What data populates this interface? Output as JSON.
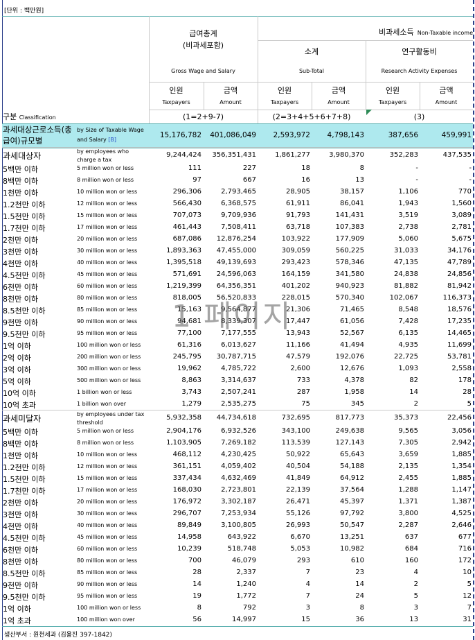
{
  "unit_note": "[단위 : 백만원]",
  "header": {
    "gross_ko1": "급여총계",
    "gross_ko2": "(비과세포함)",
    "gross_en": "Gross Wage and Salary",
    "nontax_ko": "비과세소득",
    "nontax_en": "Non-Taxable income",
    "subtotal_ko": "소계",
    "subtotal_en": "Sub-Total",
    "research_ko": "연구활동비",
    "research_en": "Research Activity Expenses",
    "persons_ko": "인원",
    "persons_en": "Taxpayers",
    "amount_ko": "금액",
    "amount_en": "Amount",
    "classification_ko": "구분",
    "classification_en": "Classification",
    "formula1": "(1=2+9-7)",
    "formula2": "(2=3+4+5+6+7+8)",
    "formula3": "(3)"
  },
  "rows": [
    {
      "type": "total",
      "ko": "과세대상근로소득(총급여)규모별",
      "en": "by Size of Taxable Wage and Salary",
      "en_tag": "[B]",
      "v": [
        "15,176,782",
        "401,086,049",
        "2,593,972",
        "4,798,143",
        "387,656",
        "459,991"
      ]
    },
    {
      "type": "sub",
      "ko": "과세대상자",
      "en": "by  employees who charge a tax",
      "v": [
        "9,244,424",
        "356,351,431",
        "1,861,277",
        "3,980,370",
        "352,283",
        "437,535"
      ]
    },
    {
      "ko": "5백만 이하",
      "en": "5  million won or less",
      "v": [
        "111",
        "227",
        "18",
        "8",
        "-",
        "-"
      ]
    },
    {
      "ko": "8백만 이하",
      "en": "8  million won or less",
      "v": [
        "97",
        "667",
        "16",
        "13",
        "-",
        "-"
      ]
    },
    {
      "ko": "1천만 이하",
      "en": "10 million won or less",
      "v": [
        "296,306",
        "2,793,465",
        "28,905",
        "38,157",
        "1,106",
        "770"
      ]
    },
    {
      "ko": "1.2천만 이하",
      "en": "12 million won or less",
      "v": [
        "566,430",
        "6,368,575",
        "61,911",
        "86,041",
        "1,943",
        "1,560"
      ]
    },
    {
      "ko": "1.5천만 이하",
      "en": "15 million won or less",
      "v": [
        "707,073",
        "9,709,936",
        "91,793",
        "141,431",
        "3,519",
        "3,089"
      ]
    },
    {
      "ko": "1.7천만 이하",
      "en": "17 million won or less",
      "v": [
        "461,443",
        "7,508,411",
        "63,718",
        "107,383",
        "2,738",
        "2,781"
      ]
    },
    {
      "ko": "2천만 이하",
      "en": "20 million won or less",
      "v": [
        "687,086",
        "12,876,254",
        "103,922",
        "177,909",
        "5,060",
        "5,675"
      ]
    },
    {
      "ko": "3천만 이하",
      "en": "30 million won or less",
      "v": [
        "1,893,363",
        "47,455,000",
        "309,059",
        "560,225",
        "31,033",
        "34,176"
      ]
    },
    {
      "ko": "4천만 이하",
      "en": "40 million won or less",
      "v": [
        "1,395,518",
        "49,139,693",
        "293,423",
        "578,346",
        "47,135",
        "47,789"
      ]
    },
    {
      "ko": "4.5천만 이하",
      "en": "45 million won or less",
      "v": [
        "571,691",
        "24,596,063",
        "164,159",
        "341,580",
        "24,838",
        "24,856"
      ]
    },
    {
      "ko": "6천만 이하",
      "en": "60 million won or less",
      "v": [
        "1,219,399",
        "64,356,351",
        "401,202",
        "940,923",
        "81,882",
        "81,942"
      ]
    },
    {
      "ko": "8천만 이하",
      "en": "80 million won or less",
      "v": [
        "818,005",
        "56,520,833",
        "228,015",
        "570,340",
        "102,067",
        "116,373"
      ]
    },
    {
      "ko": "8.5천만 이하",
      "en": "85 million won or less",
      "v": [
        "15,163",
        "9,564,877",
        "21,306",
        "71,465",
        "8,548",
        "18,576"
      ]
    },
    {
      "ko": "9천만 이하",
      "en": "90 million won or less",
      "v": [
        "94,681",
        "8,339,307",
        "17,447",
        "61,056",
        "7,428",
        "17,235"
      ]
    },
    {
      "ko": "9.5천만 이하",
      "en": "95 million won or less",
      "v": [
        "77,100",
        "7,177,555",
        "13,943",
        "52,567",
        "6,135",
        "14,465"
      ]
    },
    {
      "ko": "1억 이하",
      "en": "100 million won or less",
      "v": [
        "61,316",
        "6,013,627",
        "11,166",
        "41,494",
        "4,935",
        "11,699"
      ]
    },
    {
      "ko": "2억 이하",
      "en": "200 million won or less",
      "v": [
        "245,795",
        "30,787,715",
        "47,579",
        "192,076",
        "22,725",
        "53,781"
      ]
    },
    {
      "ko": "3억 이하",
      "en": "300 million won or less",
      "v": [
        "19,962",
        "4,785,722",
        "2,600",
        "12,676",
        "1,093",
        "2,558"
      ]
    },
    {
      "ko": "5억 이하",
      "en": "500 million won or less",
      "v": [
        "8,863",
        "3,314,637",
        "733",
        "4,378",
        "82",
        "178"
      ]
    },
    {
      "ko": "10억 이하",
      "en": "1 billion won or less",
      "v": [
        "3,743",
        "2,507,241",
        "287",
        "1,958",
        "14",
        "28"
      ]
    },
    {
      "ko": "10억 초과",
      "en": "1 billion won over",
      "v": [
        "1,279",
        "2,535,275",
        "75",
        "345",
        "2",
        "5"
      ]
    },
    {
      "type": "sub",
      "ko": "과세미달자",
      "en": "by employees under tax threshold",
      "v": [
        "5,932,358",
        "44,734,618",
        "732,695",
        "817,773",
        "35,373",
        "22,456"
      ]
    },
    {
      "ko": "5백만 이하",
      "en": "5  million won or less",
      "v": [
        "2,904,176",
        "6,932,526",
        "343,100",
        "249,638",
        "9,565",
        "3,056"
      ]
    },
    {
      "ko": "8백만 이하",
      "en": "8  million won or less",
      "v": [
        "1,103,905",
        "7,269,182",
        "113,539",
        "127,143",
        "7,305",
        "2,942"
      ]
    },
    {
      "ko": "1천만 이하",
      "en": "10 million won or less",
      "v": [
        "468,112",
        "4,230,425",
        "50,922",
        "65,643",
        "3,659",
        "1,885"
      ]
    },
    {
      "ko": "1.2천만 이하",
      "en": "12 million won or less",
      "v": [
        "361,151",
        "4,059,402",
        "40,504",
        "54,188",
        "2,135",
        "1,354"
      ]
    },
    {
      "ko": "1.5천만 이하",
      "en": "15 million won or less",
      "v": [
        "337,434",
        "4,632,469",
        "41,849",
        "64,912",
        "2,455",
        "1,885"
      ]
    },
    {
      "ko": "1.7천만 이하",
      "en": "17 million won or less",
      "v": [
        "168,030",
        "2,723,801",
        "22,139",
        "37,564",
        "1,288",
        "1,147"
      ]
    },
    {
      "ko": "2천만 이하",
      "en": "20 million won or less",
      "v": [
        "176,972",
        "3,302,187",
        "26,471",
        "45,397",
        "1,371",
        "1,387"
      ]
    },
    {
      "ko": "3천만 이하",
      "en": "30 million won or less",
      "v": [
        "296,707",
        "7,253,934",
        "55,126",
        "97,792",
        "3,800",
        "4,525"
      ]
    },
    {
      "ko": "4천만 이하",
      "en": "40 million won or less",
      "v": [
        "89,849",
        "3,100,805",
        "26,993",
        "50,547",
        "2,287",
        "2,646"
      ]
    },
    {
      "ko": "4.5천만 이하",
      "en": "45 million won or less",
      "v": [
        "14,958",
        "643,922",
        "6,670",
        "13,251",
        "637",
        "677"
      ]
    },
    {
      "ko": "6천만 이하",
      "en": "60 million won or less",
      "v": [
        "10,239",
        "518,748",
        "5,053",
        "10,982",
        "684",
        "716"
      ]
    },
    {
      "ko": "8천만 이하",
      "en": "80 million won or less",
      "v": [
        "700",
        "46,079",
        "293",
        "610",
        "160",
        "172"
      ]
    },
    {
      "ko": "8.5천만 이하",
      "en": "85 million won or less",
      "v": [
        "28",
        "2,337",
        "7",
        "23",
        "4",
        "10"
      ]
    },
    {
      "ko": "9천만 이하",
      "en": "90 million won or less",
      "v": [
        "14",
        "1,240",
        "4",
        "14",
        "2",
        "5"
      ]
    },
    {
      "ko": "9.5천만 이하",
      "en": "95 million won or less",
      "v": [
        "19",
        "1,772",
        "7",
        "24",
        "5",
        "12"
      ]
    },
    {
      "ko": "1억 이하",
      "en": "100 million won or less",
      "v": [
        "8",
        "792",
        "3",
        "8",
        "3",
        "7"
      ]
    },
    {
      "ko": "1억 초과",
      "en": "100 million won over",
      "v": [
        "56",
        "14,997",
        "15",
        "36",
        "13",
        "31"
      ]
    }
  ],
  "watermark": "1 페이지",
  "footer": "생산부서 : 원천세과 (김용진 397-1842)"
}
